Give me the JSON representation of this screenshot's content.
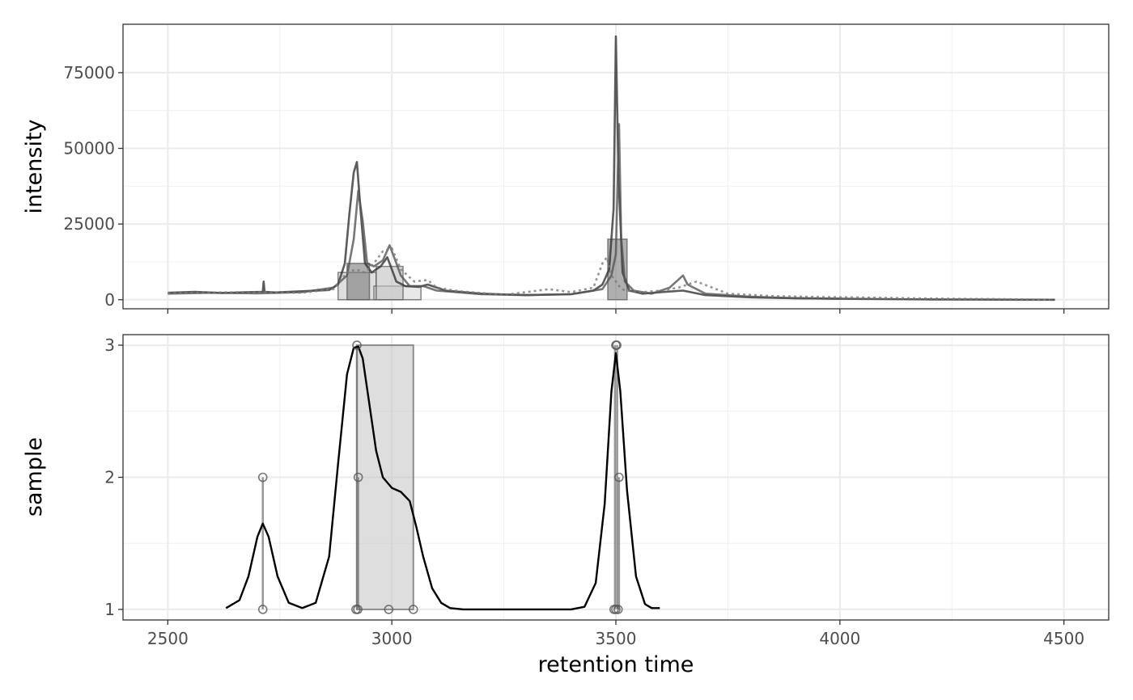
{
  "chart_data": [
    {
      "type": "line",
      "panel": "top",
      "ylabel": "intensity",
      "xlim": [
        2400,
        4600
      ],
      "ylim": [
        -3000,
        91000
      ],
      "x_ticks": [
        2500,
        3000,
        3500,
        4000,
        4500
      ],
      "y_ticks": [
        0,
        25000,
        50000,
        75000
      ],
      "y_tick_labels": [
        "0",
        "25000",
        "50000",
        "75000"
      ],
      "grid": true,
      "peak_areas": [
        {
          "rt_min": 2880,
          "rt_max": 2965,
          "top": 9000,
          "fill": "#c8c8c8"
        },
        {
          "rt_min": 2960,
          "rt_max": 3065,
          "top": 4500,
          "fill": "#d9d9d9"
        },
        {
          "rt_min": 2900,
          "rt_max": 2950,
          "top": 12000,
          "fill": "#7a7a7a"
        },
        {
          "rt_min": 2965,
          "rt_max": 3025,
          "top": 11000,
          "fill": "#bfbfbf"
        },
        {
          "rt_min": 3482,
          "rt_max": 3525,
          "top": 20000,
          "fill": "#7a7a7a"
        }
      ],
      "series": [
        {
          "color": "#333333",
          "dash": "solid",
          "x": [
            2500,
            2560,
            2620,
            2680,
            2712,
            2714,
            2716,
            2740,
            2800,
            2860,
            2880,
            2895,
            2905,
            2915,
            2922,
            2930,
            2940,
            2955,
            2975,
            2990,
            3000,
            3010,
            3030,
            3060,
            3080,
            3120,
            3200,
            3300,
            3400,
            3450,
            3470,
            3485,
            3495,
            3500,
            3506,
            3515,
            3530,
            3560,
            3600,
            3650,
            3700,
            3800,
            3900,
            4000,
            4100,
            4200,
            4300,
            4400,
            4480
          ],
          "y": [
            2300,
            2600,
            2200,
            2500,
            2600,
            6000,
            2600,
            2400,
            2800,
            3200,
            5000,
            12000,
            28000,
            42000,
            45500,
            30000,
            12000,
            9000,
            11000,
            14000,
            10000,
            6000,
            4500,
            4200,
            5000,
            3000,
            2000,
            1500,
            1800,
            3000,
            5000,
            10000,
            30000,
            87000,
            40000,
            9000,
            3000,
            2000,
            2500,
            3000,
            1500,
            800,
            500,
            300,
            200,
            100,
            50,
            0,
            0
          ]
        },
        {
          "color": "#555555",
          "dash": "solid",
          "x": [
            2500,
            2600,
            2700,
            2800,
            2870,
            2900,
            2915,
            2925,
            2935,
            2945,
            2960,
            2980,
            2995,
            3005,
            3020,
            3040,
            3070,
            3100,
            3200,
            3300,
            3400,
            3470,
            3490,
            3500,
            3507,
            3512,
            3520,
            3540,
            3580,
            3620,
            3650,
            3660,
            3700,
            3800,
            3900,
            4000
          ],
          "y": [
            2000,
            2300,
            2100,
            2500,
            4000,
            8000,
            20000,
            36000,
            26000,
            12000,
            11000,
            13000,
            18000,
            14000,
            8000,
            4500,
            4500,
            3000,
            1800,
            1500,
            1800,
            3500,
            8000,
            15000,
            58000,
            20000,
            6000,
            3000,
            2000,
            4000,
            8000,
            5000,
            2000,
            1000,
            500,
            300
          ]
        },
        {
          "color": "#7a7a7a",
          "dash": "dashed",
          "x": [
            2500,
            2600,
            2700,
            2800,
            2870,
            2900,
            2920,
            2940,
            2960,
            2980,
            3000,
            3020,
            3050,
            3080,
            3100,
            3150,
            3200,
            3250,
            3300,
            3350,
            3400,
            3450,
            3470,
            3480,
            3490,
            3500,
            3510,
            3520,
            3560,
            3600,
            3640,
            3680,
            3750,
            3850,
            3950,
            4050,
            4150,
            4250,
            4350,
            4470
          ],
          "y": [
            2200,
            2400,
            2500,
            2300,
            3500,
            9000,
            10000,
            9000,
            12000,
            16000,
            17000,
            10000,
            6000,
            6500,
            4000,
            2800,
            2200,
            1600,
            2500,
            3500,
            2500,
            4000,
            12000,
            14000,
            8000,
            6000,
            4000,
            3000,
            2500,
            3000,
            4000,
            6000,
            2000,
            1200,
            900,
            700,
            500,
            300,
            200,
            0
          ]
        }
      ]
    },
    {
      "type": "scatter",
      "panel": "bottom",
      "xlabel": "retention time",
      "ylabel": "sample",
      "xlim": [
        2400,
        4600
      ],
      "ylim": [
        0.92,
        3.08
      ],
      "x_ticks": [
        2500,
        3000,
        3500,
        4000,
        4500
      ],
      "x_tick_labels": [
        "2500",
        "3000",
        "3500",
        "4000",
        "4500"
      ],
      "y_ticks": [
        1,
        2,
        3
      ],
      "y_tick_labels": [
        "1",
        "2",
        "3"
      ],
      "grid": true,
      "group_rect": {
        "rt_min": 2922,
        "rt_max": 3048,
        "sample_min": 1,
        "sample_max": 3
      },
      "segments": [
        {
          "x": 2712,
          "y_min": 1,
          "y_max": 2
        },
        {
          "x": 2922,
          "y_min": 1,
          "y_max": 3
        },
        {
          "x": 2925,
          "y_min": 1,
          "y_max": 2
        },
        {
          "x": 3498,
          "y_min": 1,
          "y_max": 3
        },
        {
          "x": 3503,
          "y_min": 1,
          "y_max": 3
        },
        {
          "x": 3507,
          "y_min": 1,
          "y_max": 2
        }
      ],
      "points": [
        {
          "x": 2712,
          "y": 1
        },
        {
          "x": 2712,
          "y": 2
        },
        {
          "x": 2920,
          "y": 1
        },
        {
          "x": 2924,
          "y": 1
        },
        {
          "x": 2922,
          "y": 3
        },
        {
          "x": 2925,
          "y": 2
        },
        {
          "x": 2993,
          "y": 1
        },
        {
          "x": 3048,
          "y": 1
        },
        {
          "x": 3496,
          "y": 1
        },
        {
          "x": 3500,
          "y": 1
        },
        {
          "x": 3505,
          "y": 1
        },
        {
          "x": 3500,
          "y": 3
        },
        {
          "x": 3502,
          "y": 3
        },
        {
          "x": 3507,
          "y": 2
        }
      ],
      "density": {
        "x": [
          2630,
          2660,
          2680,
          2700,
          2712,
          2725,
          2745,
          2770,
          2800,
          2830,
          2860,
          2880,
          2900,
          2915,
          2925,
          2935,
          2950,
          2965,
          2980,
          3000,
          3020,
          3040,
          3055,
          3070,
          3090,
          3110,
          3130,
          3160,
          3200,
          3300,
          3400,
          3430,
          3455,
          3475,
          3490,
          3500,
          3510,
          3525,
          3545,
          3565,
          3580,
          3598
        ],
        "y": [
          1.01,
          1.07,
          1.25,
          1.55,
          1.65,
          1.55,
          1.25,
          1.05,
          1.01,
          1.05,
          1.4,
          2.1,
          2.78,
          2.98,
          2.99,
          2.9,
          2.55,
          2.2,
          2.0,
          1.92,
          1.89,
          1.82,
          1.62,
          1.4,
          1.16,
          1.05,
          1.01,
          1.0,
          1.0,
          1.0,
          1.0,
          1.02,
          1.2,
          1.8,
          2.65,
          2.94,
          2.65,
          1.9,
          1.25,
          1.04,
          1.01,
          1.01
        ]
      }
    }
  ]
}
